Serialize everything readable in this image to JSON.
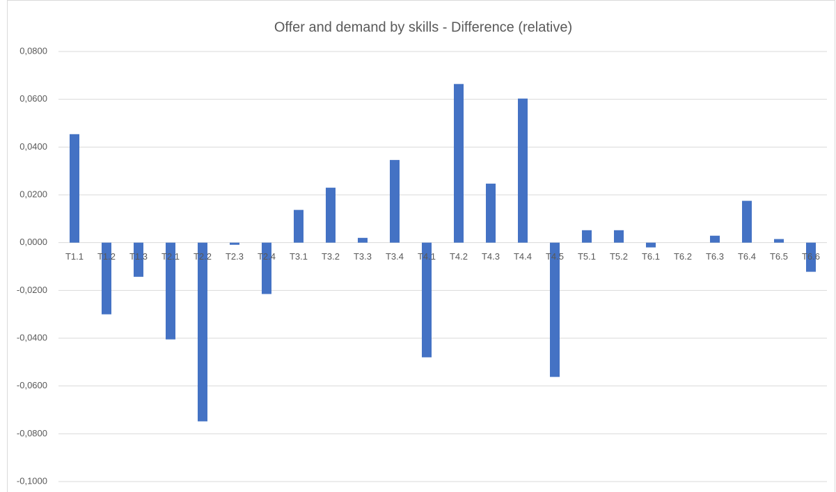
{
  "chart_data": {
    "type": "bar",
    "title": "Offer and demand by skills - Difference (relative)",
    "categories": [
      "T1.1",
      "T1.2",
      "T1.3",
      "T2.1",
      "T2.2",
      "T2.3",
      "T2.4",
      "T3.1",
      "T3.2",
      "T3.3",
      "T3.4",
      "T4.1",
      "T4.2",
      "T4.3",
      "T4.4",
      "T4.5",
      "T5.1",
      "T5.2",
      "T6.1",
      "T6.2",
      "T6.3",
      "T6.4",
      "T6.5",
      "T6.6"
    ],
    "values": [
      0.0454,
      -0.03,
      -0.0143,
      -0.0405,
      -0.0748,
      -0.0009,
      -0.0215,
      0.0137,
      0.023,
      0.002,
      0.0346,
      -0.048,
      0.0664,
      0.0247,
      0.0603,
      -0.0562,
      0.0052,
      0.0052,
      -0.002,
      0,
      0.0029,
      0.0175,
      0.0015,
      -0.0122
    ],
    "color": "#4472c4",
    "ylim": [
      -0.1,
      0.08
    ],
    "yticks": [
      {
        "value": -0.1,
        "label": "-0,1000"
      },
      {
        "value": -0.08,
        "label": "-0,0800"
      },
      {
        "value": -0.06,
        "label": "-0,0600"
      },
      {
        "value": -0.04,
        "label": "-0,0400"
      },
      {
        "value": -0.02,
        "label": "-0,0200"
      },
      {
        "value": 0,
        "label": "0,0000"
      },
      {
        "value": 0.02,
        "label": "0,0200"
      },
      {
        "value": 0.04,
        "label": "0,0400"
      },
      {
        "value": 0.06,
        "label": "0,0600"
      },
      {
        "value": 0.08,
        "label": "0,0800"
      }
    ],
    "grid": true
  }
}
